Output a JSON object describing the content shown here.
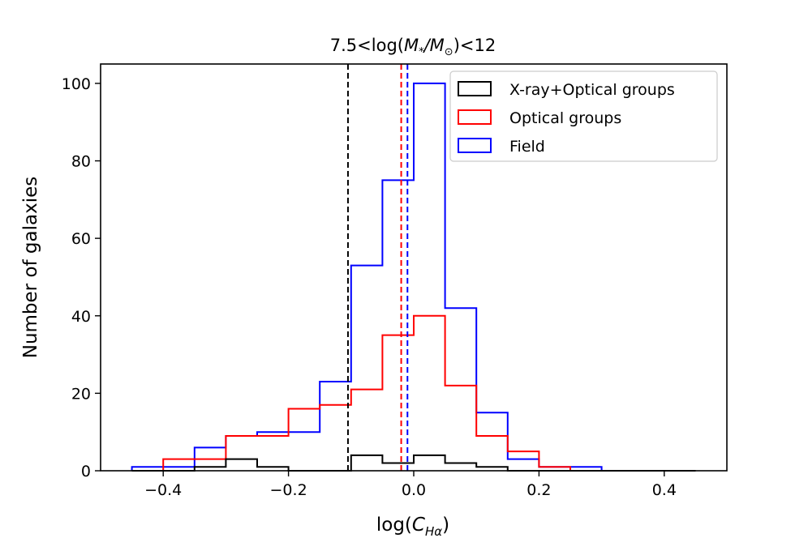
{
  "chart_data": {
    "type": "histogram",
    "title": "7.5<log(M*/M⊙)<12",
    "title_parts": {
      "pre": "7.5<log(",
      "m1": "M",
      "sub1": "*",
      "slash": "/",
      "m2": "M",
      "sub2": "⊙",
      "post": ")<12"
    },
    "xlabel": "log(C_Hα)",
    "xlabel_parts": {
      "pre": "log(",
      "main": "C",
      "sub": "Hα",
      "post": ")"
    },
    "ylabel": "Number of galaxies",
    "xlim": [
      -0.5,
      0.5
    ],
    "ylim": [
      0,
      105
    ],
    "xticks": [
      -0.4,
      -0.2,
      0.0,
      0.2,
      0.4
    ],
    "xtick_labels": [
      "−0.4",
      "−0.2",
      "0.0",
      "0.2",
      "0.4"
    ],
    "yticks": [
      0,
      20,
      40,
      60,
      80,
      100
    ],
    "ytick_labels": [
      "0",
      "20",
      "40",
      "60",
      "80",
      "100"
    ],
    "legend_position": "top-right",
    "bin_edges": [
      -0.45,
      -0.4,
      -0.35,
      -0.3,
      -0.25,
      -0.2,
      -0.15,
      -0.1,
      -0.05,
      0.0,
      0.05,
      0.1,
      0.15,
      0.2,
      0.25,
      0.3,
      0.35,
      0.4,
      0.45
    ],
    "series": [
      {
        "name": "X-ray+Optical groups",
        "color": "#000000",
        "counts": [
          0,
          0,
          1,
          3,
          1,
          0,
          0,
          4,
          2,
          4,
          2,
          1,
          0,
          0,
          0,
          0,
          0,
          0
        ],
        "median": -0.105
      },
      {
        "name": "Optical groups",
        "color": "#ff0000",
        "counts": [
          0,
          3,
          3,
          9,
          9,
          16,
          17,
          21,
          35,
          40,
          22,
          9,
          5,
          1,
          0,
          0,
          0,
          0
        ],
        "median": -0.02
      },
      {
        "name": "Field",
        "color": "#0000ff",
        "counts": [
          1,
          1,
          6,
          9,
          10,
          10,
          23,
          53,
          75,
          100,
          42,
          15,
          3,
          1,
          1,
          0,
          0,
          0
        ],
        "median": -0.01
      }
    ]
  }
}
